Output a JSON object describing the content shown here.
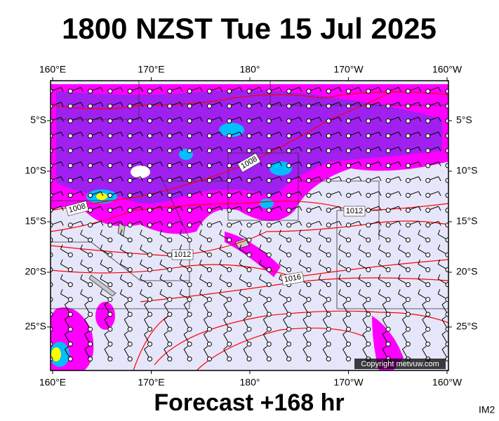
{
  "header": {
    "title": "1800 NZST Tue 15 Jul 2025"
  },
  "map": {
    "lon_labels": [
      "160°E",
      "170°E",
      "180°",
      "170°W",
      "160°W"
    ],
    "lat_labels": [
      "5°S",
      "10°S",
      "15°S",
      "20°S",
      "25°S"
    ],
    "isobar_labels": [
      "1008",
      "1008",
      "1012",
      "1012",
      "1016"
    ],
    "copyright": "Copyright metvuw.com"
  },
  "footer": {
    "forecast": "Forecast +168 hr",
    "image_id": "IM2"
  }
}
